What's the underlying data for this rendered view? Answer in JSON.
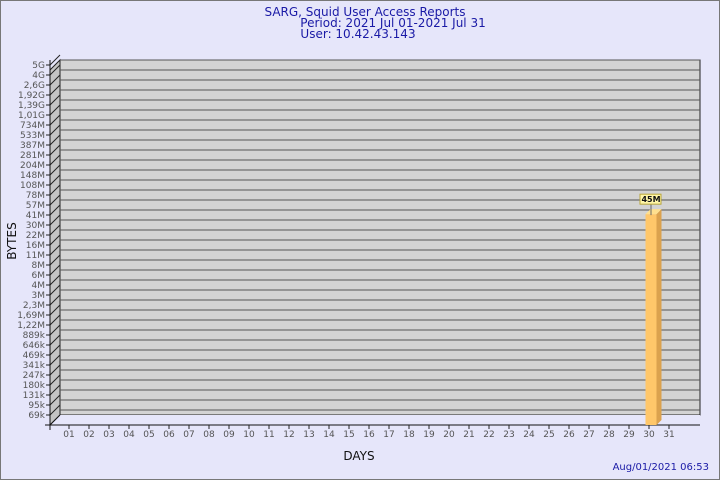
{
  "chart_data": {
    "type": "bar",
    "title": [
      "SARG, Squid User Access Reports",
      "Period: 2021 Jul 01-2021 Jul 31",
      "User: 10.42.43.143"
    ],
    "xlabel": "DAYS",
    "ylabel": "BYTES",
    "categories": [
      "01",
      "02",
      "03",
      "04",
      "05",
      "06",
      "07",
      "08",
      "09",
      "10",
      "11",
      "12",
      "13",
      "14",
      "15",
      "16",
      "17",
      "18",
      "19",
      "20",
      "21",
      "22",
      "23",
      "24",
      "25",
      "26",
      "27",
      "28",
      "29",
      "30",
      "31"
    ],
    "y_ticks": [
      "5G",
      "4G",
      "2,6G",
      "1,92G",
      "1,39G",
      "1,01G",
      "734M",
      "533M",
      "387M",
      "281M",
      "204M",
      "148M",
      "108M",
      "78M",
      "57M",
      "41M",
      "30M",
      "22M",
      "16M",
      "11M",
      "8M",
      "6M",
      "4M",
      "3M",
      "2,3M",
      "1,69M",
      "1,22M",
      "889k",
      "646k",
      "469k",
      "341k",
      "247k",
      "180k",
      "131k",
      "95k",
      "69k"
    ],
    "y_scale": "log",
    "grid": true,
    "bars": [
      {
        "category": "30",
        "value": "45M",
        "label": "45M"
      }
    ],
    "colors": {
      "bar": "#ffc76a",
      "bar_side": "#dba24e",
      "bar_top": "#ffe08e",
      "plot": "#d3d3d3",
      "label_bg": "#fff6a8",
      "title": "#1a1aa6"
    }
  },
  "footer": {
    "timestamp": "Aug/01/2021 06:53"
  }
}
